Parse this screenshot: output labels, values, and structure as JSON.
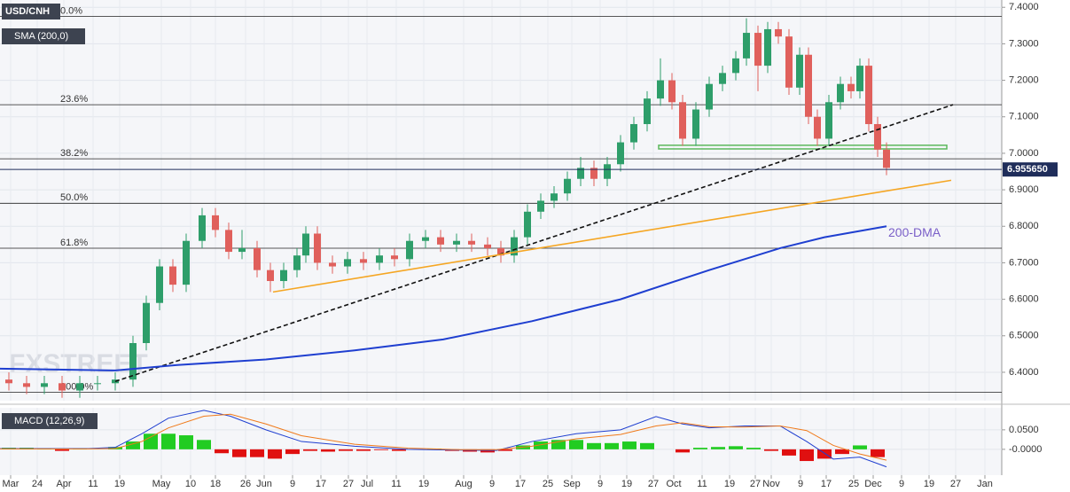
{
  "chart_data": [
    {
      "type": "candlestick",
      "title": "USD/CNH",
      "indicator": "SMA (200,0)",
      "watermark": "FXSTREET",
      "xlim": [
        0,
        226
      ],
      "ylim": [
        6.327,
        7.42
      ],
      "yticks": [
        {
          "value": 6.4,
          "label": "6.4000"
        },
        {
          "value": 6.5,
          "label": "6.5000"
        },
        {
          "value": 6.6,
          "label": "6.6000"
        },
        {
          "value": 6.7,
          "label": "6.7000"
        },
        {
          "value": 6.8,
          "label": "6.8000"
        },
        {
          "value": 6.9,
          "label": "6.9000"
        },
        {
          "value": 7.0,
          "label": "7.0000"
        },
        {
          "value": 7.1,
          "label": "7.1000"
        },
        {
          "value": 7.2,
          "label": "7.2000"
        },
        {
          "value": 7.3,
          "label": "7.3000"
        },
        {
          "value": 7.4,
          "label": "7.4000"
        }
      ],
      "grid": true,
      "up_color": "#2e9e6a",
      "down_color": "#e0605c",
      "x": [
        2,
        6,
        10,
        14,
        18,
        22,
        26,
        30,
        33,
        36,
        39,
        42,
        45.6,
        48.6,
        51.6,
        54.6,
        58,
        61,
        64,
        67,
        69,
        71.6,
        75,
        78.4,
        82,
        85.6,
        89,
        92.4,
        96,
        99.4,
        103,
        106.4,
        110,
        113,
        116,
        119,
        122,
        125,
        128,
        131,
        134,
        137,
        140,
        143,
        146,
        149,
        151.6,
        154,
        157,
        160,
        163,
        166,
        168.4,
        171,
        173.2,
        175.6,
        178,
        180.4,
        182.4,
        184.4,
        187,
        189.6,
        192,
        194,
        196,
        198,
        200
      ],
      "open": [
        6.38,
        6.37,
        6.36,
        6.37,
        6.35,
        6.37,
        6.37,
        6.38,
        6.48,
        6.59,
        6.69,
        6.64,
        6.76,
        6.83,
        6.79,
        6.73,
        6.74,
        6.68,
        6.65,
        6.68,
        6.72,
        6.78,
        6.7,
        6.69,
        6.71,
        6.7,
        6.72,
        6.71,
        6.76,
        6.77,
        6.75,
        6.76,
        6.75,
        6.74,
        6.72,
        6.77,
        6.84,
        6.87,
        6.89,
        6.93,
        6.96,
        6.93,
        6.97,
        7.03,
        7.08,
        7.15,
        7.2,
        7.14,
        7.04,
        7.12,
        7.19,
        7.22,
        7.26,
        7.33,
        7.24,
        7.34,
        7.32,
        7.18,
        7.27,
        7.1,
        7.04,
        7.14,
        7.19,
        7.17,
        7.24,
        7.08,
        7.01
      ],
      "high": [
        6.4,
        6.39,
        6.39,
        6.39,
        6.39,
        6.39,
        6.4,
        6.5,
        6.61,
        6.71,
        6.71,
        6.78,
        6.85,
        6.85,
        6.81,
        6.79,
        6.76,
        6.7,
        6.7,
        6.74,
        6.8,
        6.8,
        6.72,
        6.73,
        6.73,
        6.74,
        6.74,
        6.78,
        6.79,
        6.79,
        6.78,
        6.78,
        6.77,
        6.76,
        6.79,
        6.86,
        6.89,
        6.91,
        6.95,
        6.99,
        6.98,
        6.99,
        7.05,
        7.1,
        7.17,
        7.26,
        7.22,
        7.16,
        7.14,
        7.21,
        7.24,
        7.28,
        7.37,
        7.35,
        7.36,
        7.36,
        7.34,
        7.29,
        7.29,
        7.12,
        7.16,
        7.21,
        7.21,
        7.26,
        7.26,
        7.1,
        7.03
      ],
      "low": [
        6.35,
        6.34,
        6.34,
        6.33,
        6.33,
        6.35,
        6.35,
        6.36,
        6.46,
        6.57,
        6.62,
        6.62,
        6.74,
        6.77,
        6.71,
        6.71,
        6.66,
        6.62,
        6.63,
        6.66,
        6.7,
        6.68,
        6.67,
        6.67,
        6.68,
        6.68,
        6.69,
        6.69,
        6.74,
        6.73,
        6.73,
        6.73,
        6.72,
        6.7,
        6.7,
        6.75,
        6.82,
        6.85,
        6.87,
        6.91,
        6.91,
        6.91,
        6.95,
        7.01,
        7.06,
        7.13,
        7.12,
        7.02,
        7.02,
        7.1,
        7.17,
        7.2,
        7.24,
        7.17,
        7.22,
        7.3,
        7.16,
        7.16,
        7.08,
        7.02,
        7.02,
        7.12,
        7.15,
        7.15,
        7.06,
        6.99,
        6.94
      ],
      "close": [
        6.37,
        6.36,
        6.37,
        6.35,
        6.37,
        6.37,
        6.38,
        6.48,
        6.59,
        6.69,
        6.64,
        6.76,
        6.83,
        6.79,
        6.73,
        6.74,
        6.68,
        6.65,
        6.68,
        6.72,
        6.78,
        6.7,
        6.69,
        6.71,
        6.7,
        6.72,
        6.71,
        6.76,
        6.77,
        6.75,
        6.76,
        6.75,
        6.74,
        6.72,
        6.77,
        6.84,
        6.87,
        6.89,
        6.93,
        6.96,
        6.93,
        6.97,
        7.03,
        7.08,
        7.15,
        7.2,
        7.14,
        7.04,
        7.12,
        7.19,
        7.22,
        7.26,
        7.33,
        7.24,
        7.34,
        7.32,
        7.18,
        7.27,
        7.1,
        7.04,
        7.14,
        7.19,
        7.17,
        7.24,
        7.08,
        7.01,
        6.96
      ],
      "fib_levels": [
        {
          "label": "0.0%",
          "value": 7.375
        },
        {
          "label": "23.6%",
          "value": 7.133
        },
        {
          "label": "38.2%",
          "value": 6.985
        },
        {
          "label": "50.0%",
          "value": 6.863
        },
        {
          "label": "61.8%",
          "value": 6.74
        },
        {
          "label": "100.0%",
          "value": 6.345
        }
      ],
      "last_price": {
        "value": 6.95565,
        "label": "6.955650"
      },
      "last_price_color": "#1f2d5a",
      "sma": {
        "name": "200-DMA",
        "color": "#1f3fd0",
        "label_color": "#7a5fc8",
        "x": [
          0,
          26,
          40,
          60,
          80,
          100,
          120,
          140,
          160,
          176,
          186,
          200
        ],
        "values": [
          6.41,
          6.405,
          6.42,
          6.435,
          6.46,
          6.49,
          6.54,
          6.6,
          6.68,
          6.74,
          6.77,
          6.8
        ]
      },
      "trendlines": [
        {
          "color": "#111111",
          "dashed": true,
          "x": [
            26,
            215
          ],
          "values": [
            6.375,
            7.133
          ]
        },
        {
          "color": "#f5a623",
          "dashed": false,
          "x": [
            61.6,
            214.6
          ],
          "values": [
            6.62,
            6.926
          ]
        }
      ],
      "zone": {
        "x": [
          148.6,
          213.6
        ],
        "values": [
          7.012,
          7.022
        ],
        "color": "#5cb85c"
      }
    },
    {
      "type": "macd",
      "title": "MACD (12,26,9)",
      "xlim": [
        0,
        226
      ],
      "ylim": [
        -0.064,
        0.102
      ],
      "yticks": [
        {
          "value": 0.05,
          "label": "0.0500"
        },
        {
          "value": 0,
          "label": "-0.0000"
        }
      ],
      "xticks": [
        {
          "value": 2.4,
          "label": "Mar"
        },
        {
          "value": 8.4,
          "label": "24"
        },
        {
          "value": 14.4,
          "label": "Apr"
        },
        {
          "value": 21,
          "label": "11"
        },
        {
          "value": 27,
          "label": "19"
        },
        {
          "value": 36.4,
          "label": "May"
        },
        {
          "value": 43,
          "label": "10"
        },
        {
          "value": 48.6,
          "label": "18"
        },
        {
          "value": 55.4,
          "label": "26"
        },
        {
          "value": 59.6,
          "label": "Jun"
        },
        {
          "value": 66,
          "label": "9"
        },
        {
          "value": 72.4,
          "label": "17"
        },
        {
          "value": 78.6,
          "label": "27"
        },
        {
          "value": 82.8,
          "label": "Jul"
        },
        {
          "value": 89.4,
          "label": "11"
        },
        {
          "value": 95.6,
          "label": "19"
        },
        {
          "value": 104.6,
          "label": "Aug"
        },
        {
          "value": 111,
          "label": "9"
        },
        {
          "value": 117.4,
          "label": "17"
        },
        {
          "value": 123.6,
          "label": "25"
        },
        {
          "value": 129,
          "label": "Sep"
        },
        {
          "value": 135.4,
          "label": "9"
        },
        {
          "value": 141.4,
          "label": "19"
        },
        {
          "value": 147.4,
          "label": "27"
        },
        {
          "value": 152,
          "label": "Oct"
        },
        {
          "value": 158.4,
          "label": "11"
        },
        {
          "value": 164.6,
          "label": "19"
        },
        {
          "value": 170.4,
          "label": "27"
        },
        {
          "value": 174,
          "label": "Nov"
        },
        {
          "value": 180.6,
          "label": "9"
        },
        {
          "value": 186.4,
          "label": "17"
        },
        {
          "value": 192.6,
          "label": "25"
        },
        {
          "value": 197,
          "label": "Dec"
        },
        {
          "value": 203.4,
          "label": "9"
        },
        {
          "value": 209.6,
          "label": "19"
        },
        {
          "value": 215.6,
          "label": "27"
        },
        {
          "value": 222.2,
          "label": "Jan"
        }
      ],
      "series": [
        {
          "color": "#1f3fd0",
          "x": [
            0,
            20,
            26,
            32,
            38,
            46,
            52,
            60,
            68,
            80,
            92,
            104,
            112,
            120,
            130,
            140,
            148,
            154,
            160,
            168,
            176,
            182,
            188,
            194,
            200
          ],
          "values": [
            0.002,
            0.002,
            0.005,
            0.04,
            0.08,
            0.1,
            0.085,
            0.05,
            0.02,
            0.008,
            0,
            -0.002,
            -0.003,
            0.02,
            0.04,
            0.05,
            0.084,
            0.065,
            0.055,
            0.06,
            0.06,
            0.02,
            -0.025,
            -0.02,
            -0.045
          ]
        },
        {
          "color": "#f07a1a",
          "x": [
            0,
            20,
            26,
            32,
            38,
            46,
            52,
            60,
            68,
            80,
            92,
            104,
            112,
            120,
            130,
            140,
            148,
            154,
            160,
            168,
            176,
            182,
            188,
            194,
            200
          ],
          "values": [
            0.001,
            0.001,
            0.002,
            0.02,
            0.055,
            0.085,
            0.09,
            0.065,
            0.035,
            0.013,
            0.003,
            -0.001,
            -0.001,
            0.008,
            0.027,
            0.038,
            0.06,
            0.068,
            0.058,
            0.057,
            0.06,
            0.048,
            0.01,
            -0.012,
            -0.028
          ]
        }
      ],
      "histogram": {
        "up_color": "#22cc22",
        "down_color": "#e01010",
        "x": [
          2,
          6,
          10,
          14,
          18,
          22,
          26,
          30,
          34,
          38,
          42,
          46,
          50,
          54,
          58,
          62,
          66,
          70,
          74,
          78,
          82,
          86,
          90,
          94,
          98,
          102,
          106,
          110,
          114,
          118,
          122,
          126,
          130,
          134,
          138,
          142,
          146,
          150,
          154,
          158,
          162,
          166,
          170,
          174,
          178,
          182,
          186,
          190,
          194,
          198
        ],
        "values": [
          0.004,
          0.004,
          0.002,
          -0.004,
          0.002,
          0,
          0.006,
          0.02,
          0.04,
          0.04,
          0.036,
          0.024,
          -0.01,
          -0.02,
          -0.02,
          -0.024,
          -0.012,
          -0.004,
          -0.006,
          -0.004,
          -0.004,
          -0.002,
          -0.004,
          0,
          0.002,
          -0.004,
          -0.006,
          -0.008,
          -0.004,
          0.01,
          0.02,
          0.024,
          0.024,
          0.016,
          0.016,
          0.02,
          0.016,
          0,
          -0.008,
          0.004,
          0.006,
          0.008,
          0.004,
          -0.004,
          -0.016,
          -0.03,
          -0.024,
          -0.012,
          0.01,
          -0.02
        ]
      }
    }
  ]
}
